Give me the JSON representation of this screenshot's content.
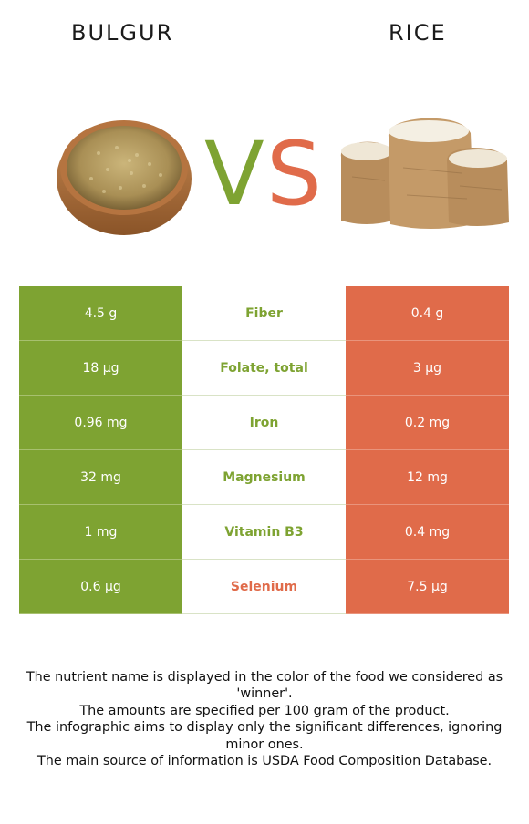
{
  "header": {
    "left_title": "BULGUR",
    "right_title": "RICE",
    "vs_left": "V",
    "vs_right": "S"
  },
  "colors": {
    "bulgur": "#7ea332",
    "rice": "#e06b4a"
  },
  "rows": [
    {
      "left": "4.5 g",
      "nutrient": "Fiber",
      "right": "0.4 g",
      "winner": "bulgur"
    },
    {
      "left": "18 µg",
      "nutrient": "Folate, total",
      "right": "3 µg",
      "winner": "bulgur"
    },
    {
      "left": "0.96 mg",
      "nutrient": "Iron",
      "right": "0.2 mg",
      "winner": "bulgur"
    },
    {
      "left": "32 mg",
      "nutrient": "Magnesium",
      "right": "12 mg",
      "winner": "bulgur"
    },
    {
      "left": "1 mg",
      "nutrient": "Vitamin B3",
      "right": "0.4 mg",
      "winner": "bulgur"
    },
    {
      "left": "0.6 µg",
      "nutrient": "Selenium",
      "right": "7.5 µg",
      "winner": "rice"
    }
  ],
  "footer": {
    "line1": "The nutrient name is displayed in the color of the food we considered as 'winner'.",
    "line2": "The amounts are specified per 100 gram of the product.",
    "line3": "The infographic aims to display only the significant differences, ignoring minor ones.",
    "line4": "The main source of information is USDA Food Composition Database."
  }
}
